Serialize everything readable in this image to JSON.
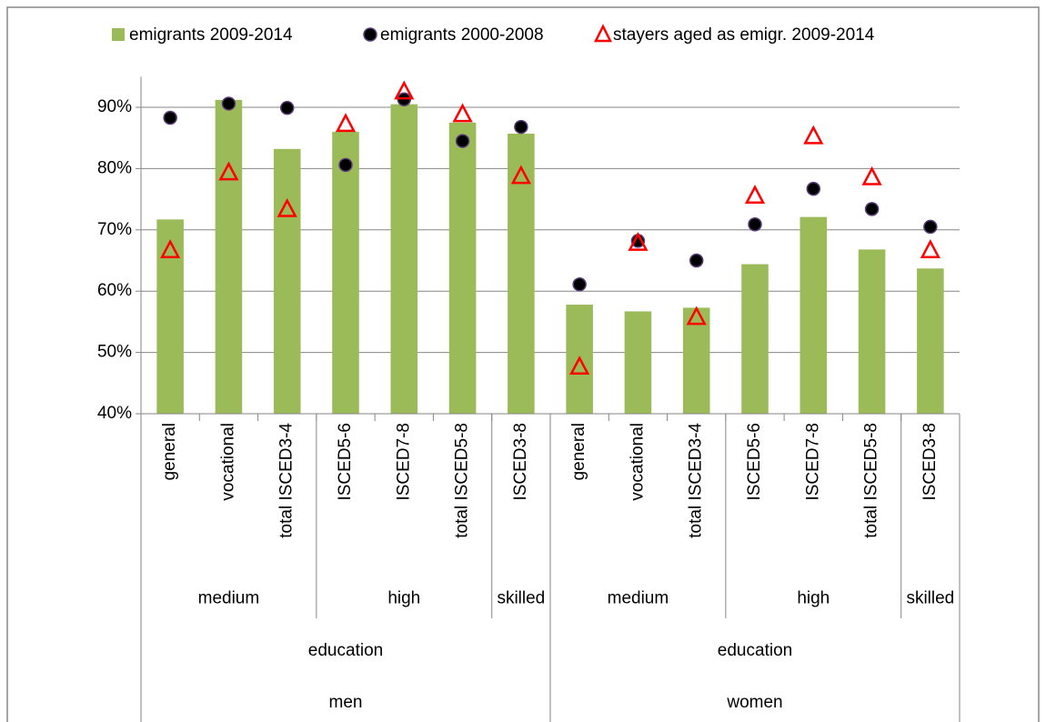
{
  "chart_data": {
    "type": "bar",
    "categories": [
      "general",
      "vocational",
      "total ISCED3-4",
      "ISCED5-6",
      "ISCED7-8",
      "total ISCED5-8",
      "ISCED3-8",
      "general",
      "vocational",
      "total ISCED3-4",
      "ISCED5-6",
      "ISCED7-8",
      "total ISCED5-8",
      "ISCED3-8"
    ],
    "category_groups": [
      [
        {
          "name": "medium",
          "size": 3
        },
        {
          "name": "high",
          "size": 3
        },
        {
          "name": "skilled",
          "size": 1
        },
        {
          "name": "medium",
          "size": 3
        },
        {
          "name": "high",
          "size": 3
        },
        {
          "name": "skilled",
          "size": 1
        }
      ],
      [
        {
          "name": "education",
          "size": 7
        },
        {
          "name": "education",
          "size": 7
        }
      ],
      [
        {
          "name": "men",
          "size": 7
        },
        {
          "name": "women",
          "size": 7
        }
      ]
    ],
    "series": [
      {
        "name": "emigrants 2009-2014",
        "type": "bar",
        "color": "#9bbb59",
        "values": [
          71.7,
          91.2,
          83.2,
          86.0,
          90.5,
          87.5,
          85.7,
          57.8,
          56.7,
          57.3,
          64.4,
          72.1,
          66.8,
          63.7
        ]
      },
      {
        "name": "emigrants 2000-2008",
        "type": "scatter",
        "marker": "circle",
        "color": "#000000",
        "values": [
          88.3,
          90.6,
          89.9,
          80.6,
          91.3,
          84.5,
          86.8,
          61.1,
          68.2,
          65.0,
          70.9,
          76.7,
          73.4,
          70.5
        ]
      },
      {
        "name": "stayers aged as emigr. 2009-2014",
        "type": "scatter",
        "marker": "triangle",
        "color": "#ff0000",
        "values": [
          66.6,
          79.3,
          73.3,
          87.2,
          92.5,
          88.8,
          78.7,
          47.6,
          67.8,
          55.7,
          75.5,
          85.2,
          78.5,
          66.6
        ]
      }
    ],
    "ylim": [
      40,
      95
    ],
    "yticks": [
      {
        "value": 40,
        "label": "40%"
      },
      {
        "value": 50,
        "label": "50%"
      },
      {
        "value": 60,
        "label": "60%"
      },
      {
        "value": 70,
        "label": "70%"
      },
      {
        "value": 80,
        "label": "80%"
      },
      {
        "value": 90,
        "label": "90%"
      }
    ],
    "grid": true,
    "legend": "top"
  }
}
